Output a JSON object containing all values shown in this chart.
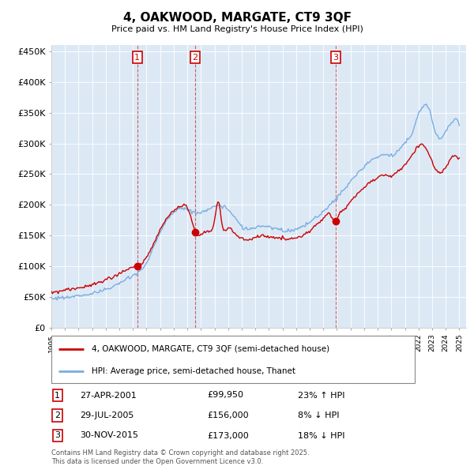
{
  "title": "4, OAKWOOD, MARGATE, CT9 3QF",
  "subtitle": "Price paid vs. HM Land Registry's House Price Index (HPI)",
  "ylabel_ticks": [
    "£0",
    "£50K",
    "£100K",
    "£150K",
    "£200K",
    "£250K",
    "£300K",
    "£350K",
    "£400K",
    "£450K"
  ],
  "ytick_values": [
    0,
    50000,
    100000,
    150000,
    200000,
    250000,
    300000,
    350000,
    400000,
    450000
  ],
  "ylim": [
    0,
    460000
  ],
  "xlim_start": 1995.0,
  "xlim_end": 2025.5,
  "legend_property": "4, OAKWOOD, MARGATE, CT9 3QF (semi-detached house)",
  "legend_hpi": "HPI: Average price, semi-detached house, Thanet",
  "transactions": [
    {
      "num": 1,
      "date": "27-APR-2001",
      "price": 99950,
      "pct": "23%",
      "dir": "↑",
      "year": 2001.32
    },
    {
      "num": 2,
      "date": "29-JUL-2005",
      "price": 156000,
      "pct": "8%",
      "dir": "↓",
      "year": 2005.57
    },
    {
      "num": 3,
      "date": "30-NOV-2015",
      "price": 173000,
      "pct": "18%",
      "dir": "↓",
      "year": 2015.92
    }
  ],
  "property_color": "#cc0000",
  "hpi_color": "#7aade0",
  "plot_bg": "#dce9f5",
  "vline_color": "#cc4444",
  "footnote": "Contains HM Land Registry data © Crown copyright and database right 2025.\nThis data is licensed under the Open Government Licence v3.0."
}
